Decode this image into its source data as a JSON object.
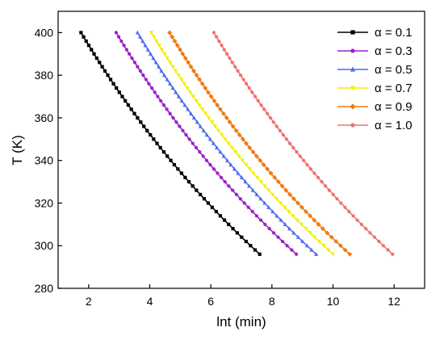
{
  "chart_data": {
    "type": "line",
    "title": "",
    "xlabel": "lnt (min)",
    "ylabel": "T (K)",
    "xlim": [
      1,
      13
    ],
    "ylim": [
      280,
      410
    ],
    "xticks": [
      2,
      4,
      6,
      8,
      10,
      12
    ],
    "yticks": [
      280,
      300,
      320,
      340,
      360,
      380,
      400
    ],
    "grid": false,
    "legend_position": "top-right",
    "series": [
      {
        "name": "α = 0.1",
        "color": "#000000",
        "marker": "square",
        "x_at_400": 1.75,
        "x_at_296": 7.6
      },
      {
        "name": "α = 0.3",
        "color": "#9b1fc8",
        "marker": "circle",
        "x_at_400": 2.9,
        "x_at_296": 8.8
      },
      {
        "name": "α = 0.5",
        "color": "#4d6bf0",
        "marker": "triangle",
        "x_at_400": 3.6,
        "x_at_296": 9.45
      },
      {
        "name": "α = 0.7",
        "color": "#f2ef00",
        "marker": "triangle-down",
        "x_at_400": 4.05,
        "x_at_296": 10.0
      },
      {
        "name": "α = 0.9",
        "color": "#f07a14",
        "marker": "diamond",
        "x_at_400": 4.65,
        "x_at_296": 10.55
      },
      {
        "name": "α = 1.0",
        "color": "#f07070",
        "marker": "circle",
        "x_at_400": 6.1,
        "x_at_296": 11.95
      }
    ],
    "T_range": [
      296,
      400
    ]
  }
}
